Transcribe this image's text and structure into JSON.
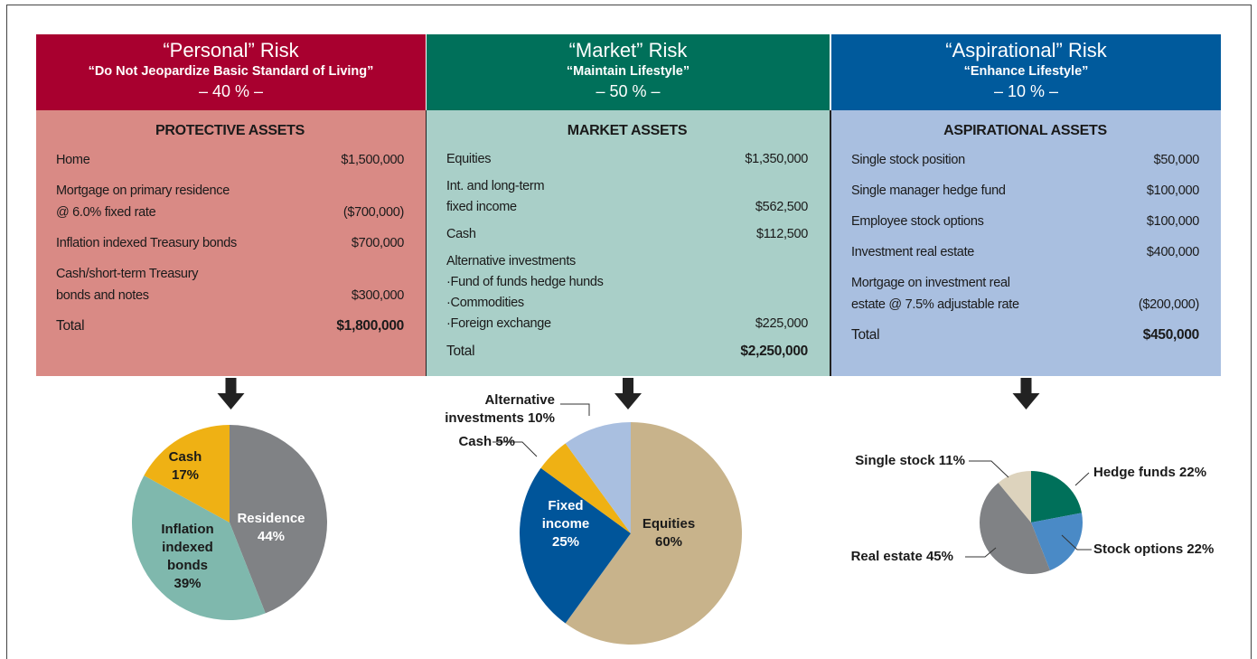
{
  "columns": [
    {
      "title": "“Personal” Risk",
      "subtitle": "“Do Not Jeopardize Basic Standard of Living”",
      "share": "– 40 % –",
      "color": "#a8002f",
      "body_color": "#d98a85",
      "section": "PROTECTIVE ASSETS",
      "rows": [
        {
          "label": [
            "Home"
          ],
          "value": "$1,500,000"
        },
        {
          "label": [
            "Mortgage on primary residence",
            "@ 6.0% fixed rate"
          ],
          "value": "($700,000)"
        },
        {
          "label": [
            "Inflation indexed Treasury bonds"
          ],
          "value": "$700,000"
        },
        {
          "label": [
            "Cash/short-term Treasury",
            "bonds and notes"
          ],
          "value": "$300,000"
        }
      ],
      "total": {
        "label": "Total",
        "value": "$1,800,000"
      }
    },
    {
      "title": "“Market” Risk",
      "subtitle": "“Maintain Lifestyle”",
      "share": "– 50 % –",
      "color": "#00705a",
      "body_color": "#a9cfc8",
      "section": "MARKET ASSETS",
      "rows": [
        {
          "label": [
            "Equities"
          ],
          "value": "$1,350,000"
        },
        {
          "label": [
            "Int. and long-term",
            "fixed income"
          ],
          "value": "$562,500"
        },
        {
          "label": [
            "Cash"
          ],
          "value": "$112,500"
        },
        {
          "label": [
            "Alternative investments",
            "·Fund of funds hedge hunds",
            "·Commodities",
            "·Foreign exchange"
          ],
          "value": "$225,000"
        }
      ],
      "total": {
        "label": "Total",
        "value": "$2,250,000"
      }
    },
    {
      "title": "“Aspirational” Risk",
      "subtitle": "“Enhance Lifestyle”",
      "share": "– 10 % –",
      "color": "#005a9c",
      "body_color": "#a9bfe0",
      "section": "ASPIRATIONAL ASSETS",
      "rows": [
        {
          "label": [
            "Single stock position"
          ],
          "value": "$50,000"
        },
        {
          "label": [
            "Single manager hedge fund"
          ],
          "value": "$100,000"
        },
        {
          "label": [
            "Employee stock options"
          ],
          "value": "$100,000"
        },
        {
          "label": [
            "Investment real estate"
          ],
          "value": "$400,000"
        },
        {
          "label": [
            "Mortgage on investment real",
            "estate @ 7.5% adjustable rate"
          ],
          "value": "($200,000)"
        }
      ],
      "total": {
        "label": "Total",
        "value": "$450,000"
      }
    }
  ],
  "chart_data": [
    {
      "type": "pie",
      "categories": [
        "Residence",
        "Inflation indexed bonds",
        "Cash"
      ],
      "values": [
        44,
        39,
        17
      ],
      "value_labels": [
        "44%",
        "39%",
        "17%"
      ],
      "colors": [
        "#808285",
        "#7fb8ad",
        "#efb114"
      ]
    },
    {
      "type": "pie",
      "categories": [
        "Equities",
        "Fixed income",
        "Cash",
        "Alternative investments"
      ],
      "values": [
        60,
        25,
        5,
        10
      ],
      "value_labels": [
        "60%",
        "25%",
        "5%",
        "10%"
      ],
      "colors": [
        "#c8b38b",
        "#00559a",
        "#efb114",
        "#a9bfe0"
      ]
    },
    {
      "type": "pie",
      "categories": [
        "Hedge funds",
        "Stock options",
        "Real estate",
        "Single stock"
      ],
      "values": [
        22,
        22,
        45,
        11
      ],
      "value_labels": [
        "22%",
        "22%",
        "45%",
        "11%"
      ],
      "colors": [
        "#00705a",
        "#4a8ac6",
        "#808285",
        "#ddd3bd"
      ]
    }
  ]
}
